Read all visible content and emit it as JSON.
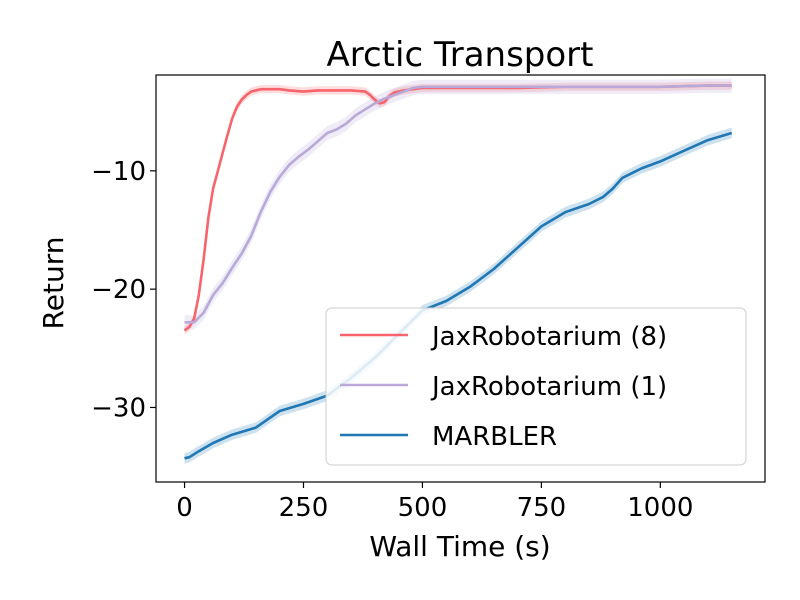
{
  "chart_data": {
    "type": "line",
    "title": "Arctic Transport",
    "xlabel": "Wall Time (s)",
    "ylabel": "Return",
    "xlim": [
      -60,
      1220
    ],
    "ylim": [
      -36.3,
      -1.9
    ],
    "xticks": [
      0,
      250,
      500,
      750,
      1000
    ],
    "xtick_labels": [
      "0",
      "250",
      "500",
      "750",
      "1000"
    ],
    "yticks": [
      -30,
      -20,
      -10
    ],
    "ytick_labels": [
      "−30",
      "−20",
      "−10"
    ],
    "grid": false,
    "legend_position": "lower-right",
    "series": [
      {
        "name": "JaxRobotarium (8)",
        "color": "#f8646b",
        "x": [
          0,
          10,
          20,
          30,
          40,
          50,
          60,
          70,
          80,
          90,
          100,
          110,
          120,
          130,
          140,
          160,
          180,
          200,
          220,
          250,
          280,
          300,
          330,
          350,
          380,
          390,
          400,
          410,
          420,
          430,
          440,
          460,
          500,
          550,
          600,
          700,
          800,
          900,
          1000,
          1100,
          1150
        ],
        "y": [
          -23.5,
          -23.2,
          -22.5,
          -20.5,
          -17.5,
          -14,
          -11.5,
          -10,
          -8.5,
          -7,
          -5.6,
          -4.6,
          -4.0,
          -3.6,
          -3.3,
          -3.1,
          -3.1,
          -3.1,
          -3.2,
          -3.3,
          -3.2,
          -3.2,
          -3.2,
          -3.2,
          -3.3,
          -3.6,
          -4.0,
          -4.3,
          -4.2,
          -3.7,
          -3.4,
          -3.2,
          -3.0,
          -3.0,
          -3.0,
          -3.0,
          -2.9,
          -2.9,
          -2.9,
          -2.8,
          -2.8
        ],
        "band": 0.35
      },
      {
        "name": "JaxRobotarium (1)",
        "color": "#b8a9d9",
        "x": [
          0,
          20,
          40,
          60,
          80,
          100,
          120,
          140,
          160,
          180,
          200,
          220,
          240,
          260,
          280,
          300,
          320,
          340,
          360,
          380,
          400,
          420,
          440,
          460,
          480,
          500,
          550,
          600,
          700,
          800,
          900,
          1000,
          1100,
          1150
        ],
        "y": [
          -22.8,
          -22.8,
          -22.0,
          -20.5,
          -19.5,
          -18.2,
          -17.0,
          -15.5,
          -13.5,
          -11.8,
          -10.5,
          -9.5,
          -8.8,
          -8.2,
          -7.5,
          -6.8,
          -6.5,
          -6.0,
          -5.3,
          -4.8,
          -4.3,
          -3.9,
          -3.6,
          -3.3,
          -3.0,
          -2.9,
          -2.9,
          -2.9,
          -2.9,
          -2.9,
          -2.9,
          -2.9,
          -2.8,
          -2.8
        ],
        "band": 0.6
      },
      {
        "name": "MARBLER",
        "color": "#1f77b4",
        "x": [
          0,
          10,
          30,
          60,
          100,
          150,
          200,
          250,
          300,
          350,
          400,
          450,
          500,
          550,
          600,
          650,
          700,
          750,
          800,
          850,
          880,
          900,
          920,
          940,
          960,
          1000,
          1050,
          1100,
          1150
        ],
        "y": [
          -34.3,
          -34.2,
          -33.7,
          -33.0,
          -32.3,
          -31.7,
          -30.3,
          -29.7,
          -29.0,
          -27.5,
          -25.8,
          -23.8,
          -21.8,
          -21.0,
          -19.8,
          -18.3,
          -16.5,
          -14.7,
          -13.5,
          -12.8,
          -12.2,
          -11.5,
          -10.6,
          -10.2,
          -9.8,
          -9.2,
          -8.3,
          -7.4,
          -6.8
        ],
        "band": 0.45
      }
    ]
  }
}
